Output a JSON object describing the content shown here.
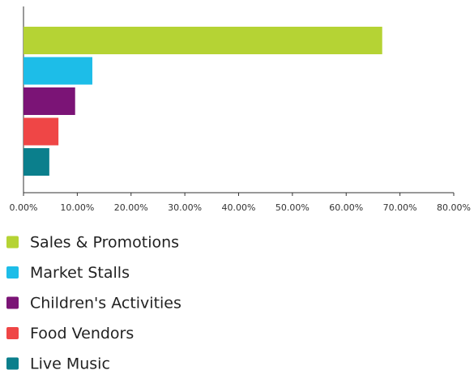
{
  "chart_data": {
    "type": "bar",
    "orientation": "horizontal",
    "series": [
      {
        "name": "Sales & Promotions",
        "color": "#b5d334",
        "values": [
          66.7
        ]
      },
      {
        "name": "Market Stalls",
        "color": "#1dbde8",
        "values": [
          12.8
        ]
      },
      {
        "name": "Children's Activities",
        "color": "#7b1476",
        "values": [
          9.6
        ]
      },
      {
        "name": "Food Vendors",
        "color": "#ef4646",
        "values": [
          6.5
        ]
      },
      {
        "name": "Live Music",
        "color": "#0b7f8c",
        "values": [
          4.8
        ]
      }
    ],
    "xlim": [
      0,
      80
    ],
    "xticks": [
      {
        "value": 0,
        "label": "0.00%"
      },
      {
        "value": 10,
        "label": "10.00%"
      },
      {
        "value": 20,
        "label": "20.00%"
      },
      {
        "value": 30,
        "label": "30.00%"
      },
      {
        "value": 40,
        "label": "40.00%"
      },
      {
        "value": 50,
        "label": "50.00%"
      },
      {
        "value": 60,
        "label": "60.00%"
      },
      {
        "value": 70,
        "label": "70.00%"
      },
      {
        "value": 80,
        "label": "80.00%"
      }
    ],
    "legend": "bottom"
  }
}
